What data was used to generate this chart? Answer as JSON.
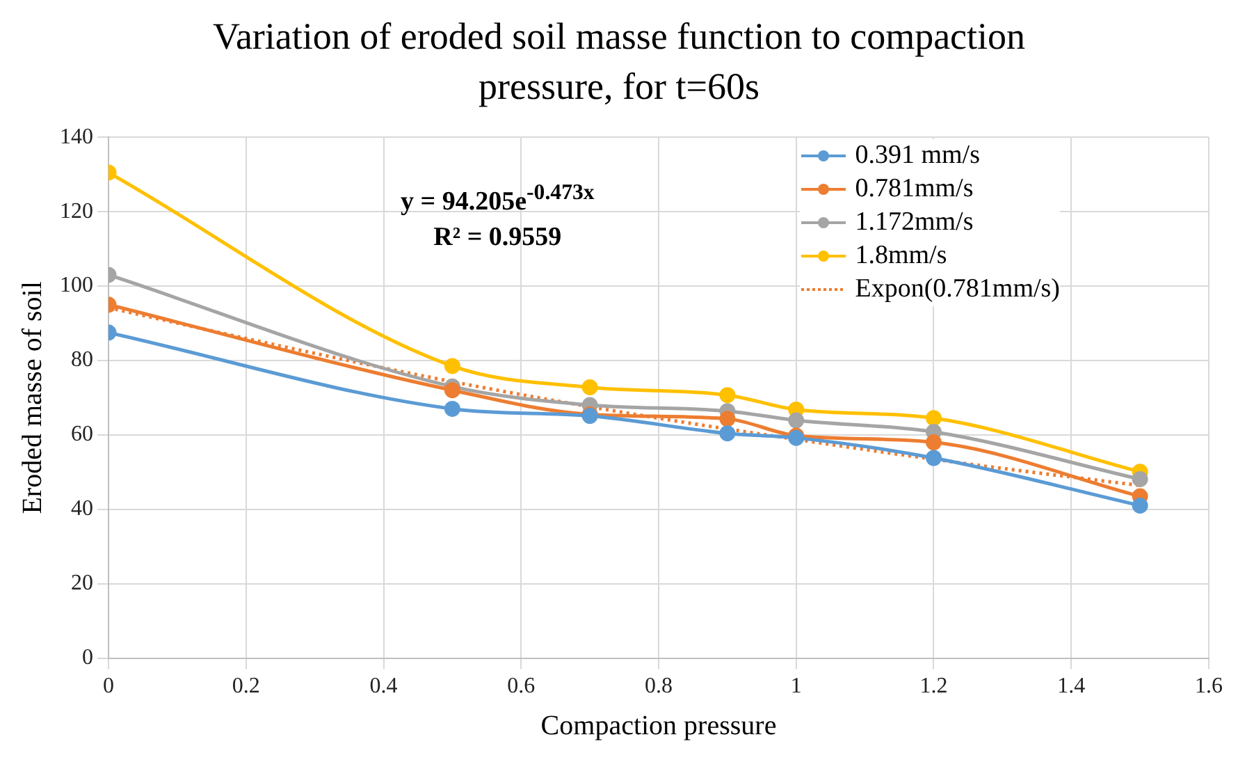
{
  "chart_data": {
    "type": "line",
    "title": "Variation of eroded soil masse function to compaction pressure, for t=60s",
    "xlabel": "Compaction pressure",
    "ylabel": "Eroded masse of soil",
    "x": [
      0,
      0.5,
      0.7,
      0.9,
      1,
      1.2,
      1.5
    ],
    "series": [
      {
        "name": "0.391 mm/s",
        "color": "#5b9bd5",
        "values": [
          87.5,
          67,
          65.1,
          60.4,
          59.2,
          53.8,
          41
        ]
      },
      {
        "name": "0.781mm/s",
        "color": "#ed7d31",
        "values": [
          95,
          72,
          65.5,
          64.3,
          59.8,
          58,
          43.5
        ]
      },
      {
        "name": "1.172mm/s",
        "color": "#a5a5a5",
        "values": [
          103,
          73,
          68,
          66.4,
          63.9,
          60.8,
          48.1
        ]
      },
      {
        "name": "1.8mm/s",
        "color": "#ffc000",
        "values": [
          130.5,
          78.5,
          72.8,
          70.7,
          66.8,
          64.5,
          50.1
        ]
      },
      {
        "name": "Expon(0.781mm/s)",
        "color": "#ed7d31",
        "marker": "none",
        "line_style": "dotted",
        "x": [
          0,
          0.25,
          0.5,
          0.75,
          1,
          1.25,
          1.5
        ],
        "values": [
          94.2,
          83.9,
          74.3,
          66.0,
          58.8,
          52.2,
          46.4
        ]
      }
    ],
    "annotations": [
      "y = 94.205e$^{-0.473x}$",
      "R² = 0.9559"
    ],
    "xlim": [
      0,
      1.6
    ],
    "xticks": [
      0,
      0.2,
      0.4,
      0.6,
      0.8,
      1,
      1.2,
      1.4,
      1.6
    ],
    "ylim": [
      0,
      140
    ],
    "yticks": [
      0,
      20,
      40,
      60,
      80,
      100,
      120,
      140
    ],
    "grid": true,
    "legend": "top right",
    "marker": "circle",
    "line_style": "solid"
  }
}
